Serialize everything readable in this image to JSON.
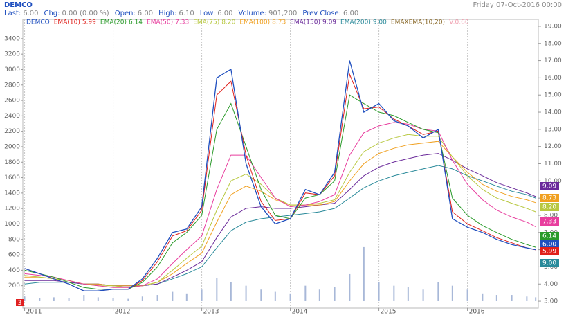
{
  "chart_data": {
    "type": "line",
    "title": "DEMCO",
    "datetime": "Friday 07-Oct-2016 00:00",
    "info": [
      {
        "label": "Last:",
        "value": "6.00"
      },
      {
        "label": "Chg:",
        "value": "0.00 (0.00 %)"
      },
      {
        "label": "Open:",
        "value": "6.00"
      },
      {
        "label": "High:",
        "value": "6.10"
      },
      {
        "label": "Low:",
        "value": "6.00"
      },
      {
        "label": "Volume:",
        "value": "901,200"
      },
      {
        "label": "Prev Close:",
        "value": "6.00"
      }
    ],
    "badge": "3",
    "x": [
      2011.0,
      2011.17,
      2011.33,
      2011.5,
      2011.67,
      2011.83,
      2012.0,
      2012.17,
      2012.33,
      2012.5,
      2012.67,
      2012.83,
      2013.0,
      2013.17,
      2013.33,
      2013.5,
      2013.67,
      2013.83,
      2014.0,
      2014.17,
      2014.33,
      2014.5,
      2014.67,
      2014.83,
      2015.0,
      2015.17,
      2015.33,
      2015.5,
      2015.67,
      2015.83,
      2016.0,
      2016.17,
      2016.33,
      2016.5,
      2016.67,
      2016.77
    ],
    "xlim": [
      2010.98,
      2016.8
    ],
    "xticks": [
      2011,
      2012,
      2013,
      2014,
      2015,
      2016
    ],
    "ylim": [
      2.6,
      19.4
    ],
    "yticks": [
      {
        "value": 3,
        "label": "3.00"
      },
      {
        "value": 4,
        "label": "4.00"
      },
      {
        "value": 5,
        "label": "5.00"
      },
      {
        "value": 6,
        "label": "6.00"
      },
      {
        "value": 7,
        "label": "7.00"
      },
      {
        "value": 8,
        "label": "8.00"
      },
      {
        "value": 9,
        "label": "9.00"
      },
      {
        "value": 10,
        "label": "10.00"
      },
      {
        "value": 11,
        "label": "11.00"
      },
      {
        "value": 12,
        "label": "12.00"
      },
      {
        "value": 13,
        "label": "13.00"
      },
      {
        "value": 14,
        "label": "14.00"
      },
      {
        "value": 15,
        "label": "15.00"
      },
      {
        "value": 16,
        "label": "16.00"
      },
      {
        "value": 17,
        "label": "17.00"
      },
      {
        "value": 18,
        "label": "18.00"
      },
      {
        "value": 19,
        "label": "19.00"
      }
    ],
    "y2lim": [
      -90,
      3650
    ],
    "y2ticks": [
      200,
      400,
      600,
      800,
      1000,
      1200,
      1400,
      1600,
      1800,
      2000,
      2200,
      2400,
      2600,
      2800,
      3000,
      3200,
      3400
    ],
    "grid": true,
    "series": [
      {
        "name": "DEMCO",
        "color": "#1f4fbf",
        "values": [
          4.9,
          4.6,
          4.3,
          4.0,
          3.6,
          3.6,
          3.7,
          3.7,
          4.3,
          5.5,
          7.0,
          7.2,
          8.5,
          16.0,
          16.5,
          11.0,
          8.5,
          7.5,
          7.8,
          9.5,
          9.2,
          10.5,
          17.0,
          14.0,
          14.5,
          13.5,
          13.2,
          12.5,
          13.0,
          7.8,
          7.3,
          7.0,
          6.6,
          6.3,
          6.1,
          6.0
        ]
      },
      {
        "name": "EMA(10)",
        "legend_value": "5.99",
        "color": "#e0201b",
        "values": [
          4.9,
          4.6,
          4.3,
          4.0,
          3.6,
          3.6,
          3.7,
          3.7,
          4.2,
          5.3,
          6.8,
          7.1,
          8.3,
          15.0,
          15.8,
          11.5,
          8.8,
          7.7,
          7.8,
          9.3,
          9.2,
          10.3,
          16.2,
          14.2,
          14.3,
          13.6,
          13.2,
          12.7,
          12.9,
          8.2,
          7.5,
          7.1,
          6.7,
          6.4,
          6.1,
          5.99
        ]
      },
      {
        "name": "EMA(20)",
        "legend_value": "6.14",
        "color": "#2a9a2a",
        "values": [
          4.8,
          4.6,
          4.4,
          4.1,
          3.8,
          3.7,
          3.7,
          3.7,
          4.1,
          5.0,
          6.4,
          7.0,
          8.0,
          13.0,
          14.5,
          12.0,
          9.5,
          8.0,
          7.8,
          9.0,
          9.2,
          10.0,
          15.0,
          14.5,
          14.0,
          13.8,
          13.4,
          13.0,
          12.8,
          9.0,
          8.0,
          7.4,
          7.0,
          6.6,
          6.3,
          6.14
        ]
      },
      {
        "name": "EMA(50)",
        "legend_value": "7.33",
        "color": "#e83e9e",
        "values": [
          4.6,
          4.5,
          4.4,
          4.2,
          4.0,
          3.9,
          3.8,
          3.8,
          3.9,
          4.3,
          5.2,
          6.0,
          6.8,
          9.5,
          11.5,
          11.5,
          10.2,
          9.0,
          8.5,
          8.6,
          8.8,
          9.2,
          11.5,
          12.8,
          13.2,
          13.4,
          13.3,
          13.0,
          12.9,
          11.2,
          9.8,
          8.9,
          8.3,
          7.9,
          7.6,
          7.33
        ]
      },
      {
        "name": "EMA(75)",
        "legend_value": "8.20",
        "color": "#b8c840",
        "values": [
          4.5,
          4.4,
          4.3,
          4.2,
          4.0,
          3.9,
          3.9,
          3.8,
          3.9,
          4.1,
          4.8,
          5.5,
          6.2,
          8.3,
          10.0,
          10.4,
          9.8,
          9.0,
          8.6,
          8.6,
          8.7,
          8.9,
          10.5,
          11.7,
          12.2,
          12.5,
          12.7,
          12.6,
          12.6,
          11.4,
          10.3,
          9.5,
          9.0,
          8.7,
          8.4,
          8.2
        ]
      },
      {
        "name": "EMA(100)",
        "legend_value": "8.73",
        "color": "#f0a020",
        "values": [
          4.4,
          4.4,
          4.3,
          4.2,
          4.0,
          4.0,
          3.9,
          3.9,
          3.9,
          4.1,
          4.6,
          5.2,
          5.8,
          7.6,
          9.2,
          9.7,
          9.4,
          8.9,
          8.6,
          8.6,
          8.6,
          8.8,
          10.0,
          11.0,
          11.6,
          11.9,
          12.1,
          12.2,
          12.3,
          11.4,
          10.5,
          9.8,
          9.4,
          9.1,
          8.9,
          8.73
        ]
      },
      {
        "name": "EMA(150)",
        "legend_value": "9.09",
        "color": "#6a2a9a",
        "values": [
          4.2,
          4.2,
          4.2,
          4.1,
          4.0,
          4.0,
          3.9,
          3.9,
          3.9,
          4.0,
          4.4,
          4.8,
          5.3,
          6.7,
          7.9,
          8.4,
          8.5,
          8.4,
          8.4,
          8.5,
          8.6,
          8.7,
          9.5,
          10.3,
          10.8,
          11.1,
          11.3,
          11.5,
          11.6,
          11.2,
          10.7,
          10.3,
          9.9,
          9.6,
          9.3,
          9.09
        ]
      },
      {
        "name": "EMA(200)",
        "legend_value": "9.00",
        "color": "#2a8a9a",
        "values": [
          4.0,
          4.1,
          4.1,
          4.1,
          4.0,
          4.0,
          3.9,
          3.9,
          3.9,
          4.0,
          4.3,
          4.6,
          5.0,
          6.1,
          7.1,
          7.6,
          7.8,
          7.9,
          8.0,
          8.1,
          8.2,
          8.4,
          9.0,
          9.6,
          10.0,
          10.3,
          10.5,
          10.7,
          10.9,
          10.7,
          10.3,
          10.0,
          9.7,
          9.4,
          9.2,
          9.0
        ]
      }
    ],
    "legend_extra": [
      {
        "text": "EMAXEMA(10,20)",
        "color": "#8a6a2a"
      },
      {
        "text": "V:0.60",
        "color": "#f0a0b0"
      }
    ],
    "volume": {
      "color": "#a8b8d8",
      "axis": "y2",
      "values": [
        60,
        40,
        50,
        40,
        80,
        50,
        40,
        30,
        60,
        80,
        120,
        100,
        150,
        300,
        250,
        200,
        150,
        120,
        100,
        200,
        150,
        180,
        350,
        700,
        250,
        200,
        180,
        150,
        250,
        200,
        150,
        100,
        80,
        80,
        60,
        50
      ]
    }
  }
}
